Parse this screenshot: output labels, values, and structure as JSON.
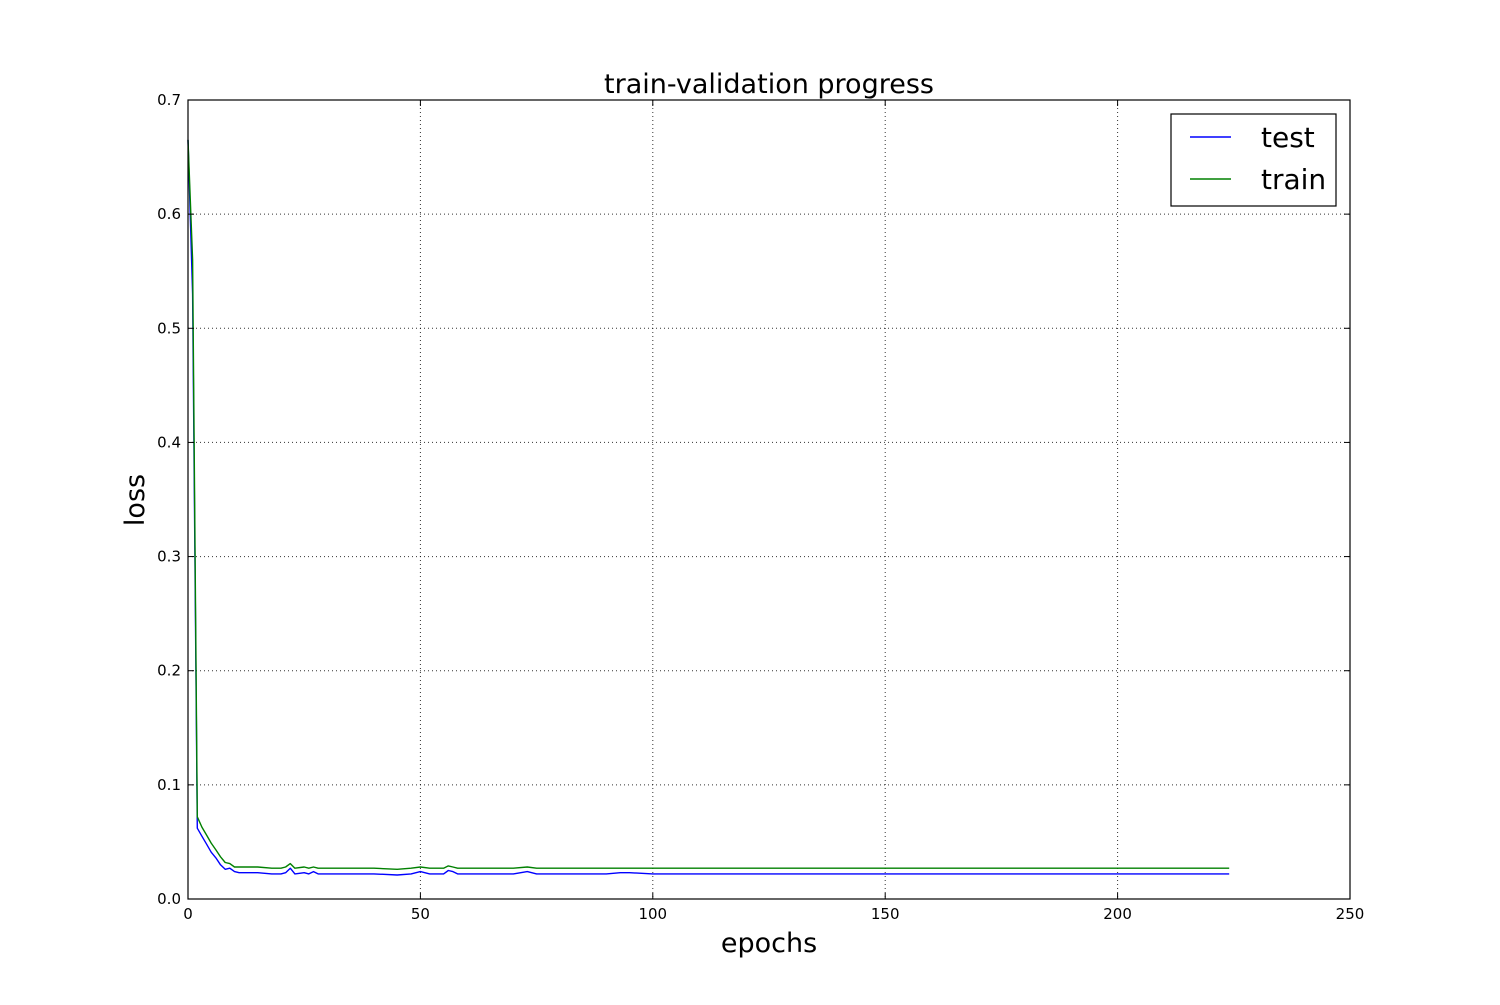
{
  "chart_data": {
    "type": "line",
    "title": "train-validation progress",
    "xlabel": "epochs",
    "ylabel": "loss",
    "xlim": [
      0,
      250
    ],
    "ylim": [
      0,
      0.7
    ],
    "xticks": [
      0,
      50,
      100,
      150,
      200,
      250
    ],
    "yticks": [
      0.0,
      0.1,
      0.2,
      0.3,
      0.4,
      0.5,
      0.6,
      0.7
    ],
    "xtick_labels": [
      "0",
      "50",
      "100",
      "150",
      "200",
      "250"
    ],
    "ytick_labels": [
      "0.0",
      "0.1",
      "0.2",
      "0.3",
      "0.4",
      "0.5",
      "0.6",
      "0.7"
    ],
    "grid": true,
    "legend_position": "top-right",
    "series": [
      {
        "name": "test",
        "color": "#0000ff",
        "x": [
          0,
          1,
          2,
          3,
          4,
          5,
          6,
          7,
          8,
          9,
          10,
          11,
          12,
          15,
          18,
          20,
          21,
          22,
          23,
          25,
          26,
          27,
          28,
          30,
          35,
          40,
          45,
          48,
          50,
          52,
          55,
          56,
          57,
          58,
          60,
          65,
          70,
          73,
          75,
          80,
          85,
          90,
          93,
          95,
          100,
          110,
          120,
          130,
          140,
          150,
          160,
          170,
          180,
          190,
          200,
          210,
          224
        ],
        "y": [
          0.665,
          0.53,
          0.062,
          0.055,
          0.048,
          0.041,
          0.036,
          0.03,
          0.026,
          0.027,
          0.024,
          0.023,
          0.023,
          0.023,
          0.022,
          0.022,
          0.023,
          0.027,
          0.022,
          0.023,
          0.022,
          0.024,
          0.022,
          0.022,
          0.022,
          0.022,
          0.021,
          0.022,
          0.024,
          0.022,
          0.022,
          0.025,
          0.024,
          0.022,
          0.022,
          0.022,
          0.022,
          0.024,
          0.022,
          0.022,
          0.022,
          0.022,
          0.023,
          0.023,
          0.022,
          0.022,
          0.022,
          0.022,
          0.022,
          0.022,
          0.022,
          0.022,
          0.022,
          0.022,
          0.022,
          0.022,
          0.022
        ]
      },
      {
        "name": "train",
        "color": "#008000",
        "x": [
          0,
          1,
          2,
          3,
          4,
          5,
          6,
          7,
          8,
          9,
          10,
          11,
          12,
          15,
          18,
          20,
          21,
          22,
          23,
          25,
          26,
          27,
          28,
          30,
          35,
          40,
          45,
          48,
          50,
          52,
          55,
          56,
          57,
          58,
          60,
          65,
          70,
          73,
          75,
          80,
          85,
          90,
          93,
          95,
          100,
          110,
          120,
          130,
          140,
          150,
          160,
          170,
          180,
          190,
          200,
          210,
          224
        ],
        "y": [
          0.665,
          0.56,
          0.072,
          0.063,
          0.056,
          0.049,
          0.043,
          0.037,
          0.032,
          0.031,
          0.028,
          0.028,
          0.028,
          0.028,
          0.027,
          0.027,
          0.028,
          0.031,
          0.027,
          0.028,
          0.027,
          0.028,
          0.027,
          0.027,
          0.027,
          0.027,
          0.026,
          0.027,
          0.028,
          0.027,
          0.027,
          0.029,
          0.028,
          0.027,
          0.027,
          0.027,
          0.027,
          0.028,
          0.027,
          0.027,
          0.027,
          0.027,
          0.027,
          0.027,
          0.027,
          0.027,
          0.027,
          0.027,
          0.027,
          0.027,
          0.027,
          0.027,
          0.027,
          0.027,
          0.027,
          0.027,
          0.027
        ]
      }
    ]
  }
}
